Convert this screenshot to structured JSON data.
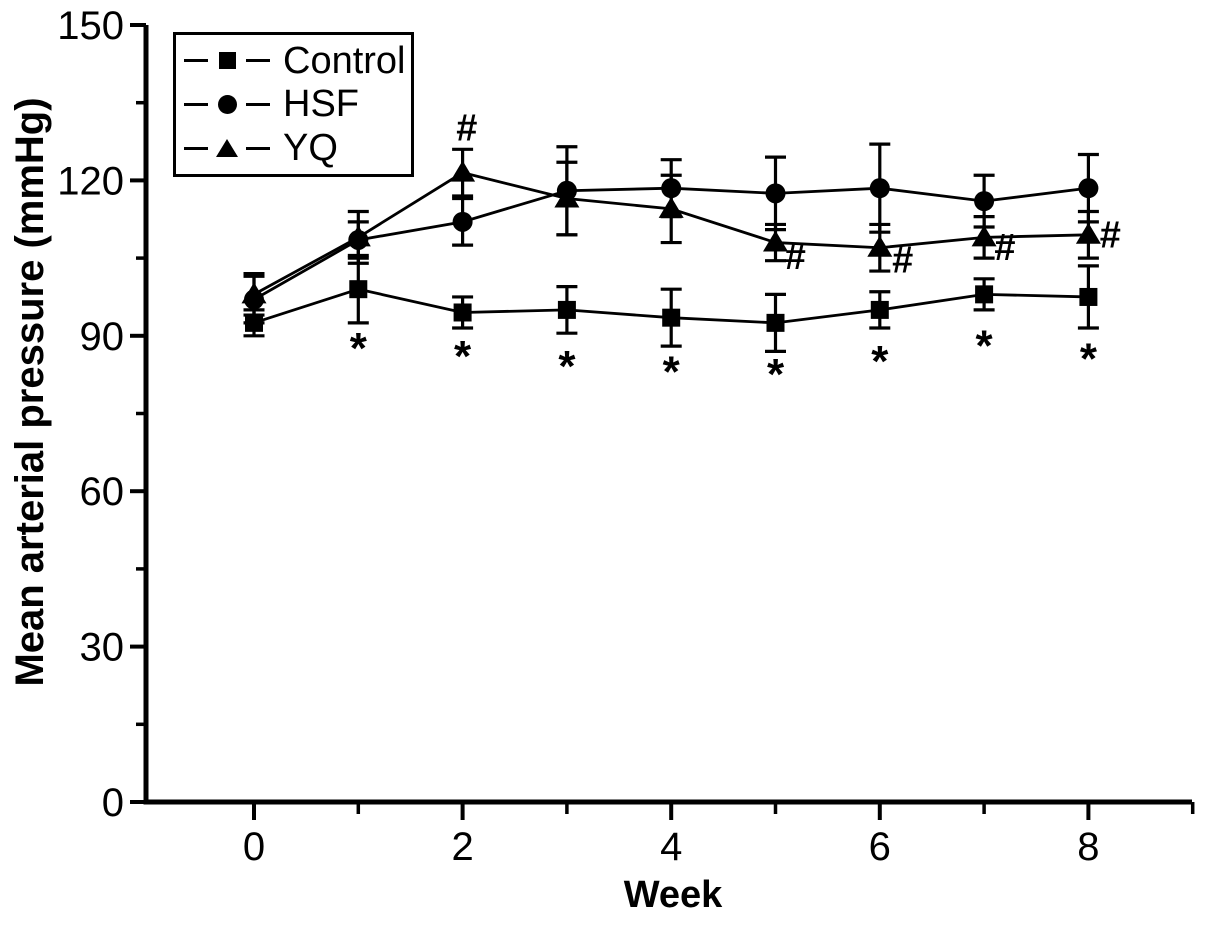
{
  "figure": {
    "background_color": "#ffffff",
    "ink_color": "#000000"
  },
  "chart_data": {
    "type": "line",
    "title": "",
    "xlabel": "Week",
    "ylabel": "Mean arterial pressure (mmHg)",
    "x": [
      0,
      1,
      2,
      3,
      4,
      5,
      6,
      7,
      8
    ],
    "xlim": [
      -1.05,
      9.05
    ],
    "ylim": [
      0,
      150
    ],
    "x_major_ticks": [
      0,
      2,
      4,
      6,
      8
    ],
    "x_minor_ticks": [
      1,
      3,
      5,
      7,
      9
    ],
    "y_major_ticks": [
      0,
      30,
      60,
      90,
      120,
      150
    ],
    "y_minor_ticks": [
      15,
      45,
      75,
      105,
      135
    ],
    "grid": false,
    "legend_position": "top-left",
    "series": [
      {
        "name": "Control",
        "marker": "square",
        "values": [
          92.5,
          99,
          94.5,
          95,
          93.5,
          92.5,
          95,
          98,
          97.5
        ],
        "errors": [
          2.5,
          6.5,
          3,
          4.5,
          5.5,
          5.5,
          3.5,
          3,
          6
        ]
      },
      {
        "name": "HSF",
        "marker": "circle",
        "values": [
          97,
          108.5,
          112,
          118,
          118.5,
          117.5,
          118.5,
          116,
          118.5
        ],
        "errors": [
          4.5,
          3.5,
          4.5,
          8.5,
          5.5,
          7,
          8.5,
          5,
          6.5
        ]
      },
      {
        "name": "YQ",
        "marker": "triangle",
        "values": [
          98,
          109,
          121.5,
          116.5,
          114.5,
          108,
          107,
          109,
          109.5
        ],
        "errors": [
          4,
          5,
          4.5,
          7,
          6.5,
          3.5,
          4.5,
          4,
          4.5
        ]
      }
    ],
    "annotations": [
      {
        "text": "*",
        "x": 1,
        "y": 89
      },
      {
        "text": "*",
        "x": 2,
        "y": 87.5
      },
      {
        "text": "*",
        "x": 3,
        "y": 85.5
      },
      {
        "text": "*",
        "x": 4,
        "y": 84.5
      },
      {
        "text": "*",
        "x": 5,
        "y": 84
      },
      {
        "text": "*",
        "x": 6,
        "y": 86.5
      },
      {
        "text": "*",
        "x": 7,
        "y": 89.5
      },
      {
        "text": "*",
        "x": 8,
        "y": 87
      },
      {
        "text": "#",
        "x": 2.04,
        "y": 130.3
      },
      {
        "text": "#",
        "x": 5.19,
        "y": 105.5
      },
      {
        "text": "#",
        "x": 6.22,
        "y": 104.8
      },
      {
        "text": "#",
        "x": 7.2,
        "y": 107.2
      },
      {
        "text": "#",
        "x": 8.21,
        "y": 109.7
      }
    ]
  }
}
